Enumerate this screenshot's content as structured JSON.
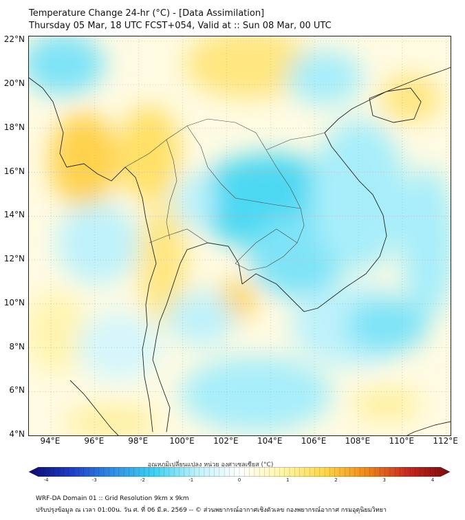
{
  "title": {
    "line1": "Temperature Change 24-hr (°C) - [Data Assimilation]",
    "line2": "Thursday 05 Mar, 18 UTC FCST+054, Valid at :: Sun 08 Mar, 00 UTC"
  },
  "map": {
    "lat_labels": [
      "22°N",
      "20°N",
      "18°N",
      "16°N",
      "14°N",
      "12°N",
      "10°N",
      "8°N",
      "6°N",
      "4°N"
    ],
    "lon_labels": [
      "94°E",
      "96°E",
      "98°E",
      "100°E",
      "102°E",
      "104°E",
      "106°E",
      "108°E",
      "110°E",
      "112°E"
    ],
    "lat_range": [
      4,
      22.2
    ],
    "lon_range": [
      93,
      112.2
    ]
  },
  "colorbar": {
    "title": "อุณหภูมิเปลี่ยนแปลง หน่วย องศาเซลเซียส (°C)",
    "ticks": [
      "-4",
      "-3",
      "-2",
      "-1",
      "0",
      "1",
      "2",
      "3",
      "4"
    ],
    "min": -4,
    "max": 4,
    "colors": [
      "#0a0a6e",
      "#1e3cc8",
      "#2f8fe6",
      "#3fd2f2",
      "#bff2fb",
      "#ffffff",
      "#fff7a8",
      "#ffd84a",
      "#f08a1a",
      "#c8281e",
      "#7a0a0a"
    ]
  },
  "footer": {
    "line1": "WRF-DA Domain 01 :: Grid Resolution 9km x 9km",
    "line2": "ปรับปรุงข้อมูล ณ เวลา 01:00น. วัน ศ. ที่ 06 มี.ค. 2569 -- © ส่วนพยากรณ์อากาศเชิงตัวเลข กองพยากรณ์อากาศ กรมอุตุนิยมวิทยา"
  }
}
